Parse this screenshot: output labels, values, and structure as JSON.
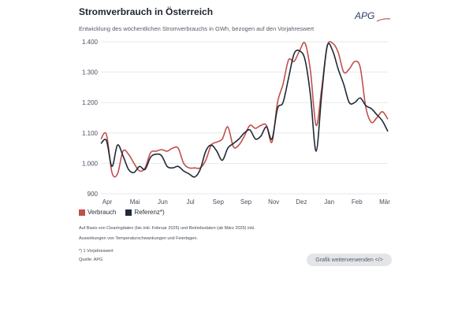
{
  "header": {
    "title": "Stromverbrauch in Österreich",
    "subtitle": "Entwicklung des wöchentlichen Stromverbrauchs in GWh, bezogen auf den Vorjahreswert",
    "logo_text": "APG"
  },
  "legend": {
    "verbrauch": "Verbrauch",
    "referenz": "Referenz*)"
  },
  "footer": {
    "note1": "Auf Basis von Clearingdaten (bis inkl. Februar 2025) und Betriebsdaten (ab März 2025) inkl.",
    "note2": "Auswirkungen von Temperaturschwankungen und Feiertagen.",
    "note3": "*) 1 Vorjahreswert",
    "source": "Quelle: APG",
    "button_label": "Grafik weiterverwenden </>"
  },
  "colors": {
    "verbrauch": "#c0504d",
    "referenz": "#1f2a38",
    "grid": "#e2e3e6"
  },
  "chart_data": {
    "type": "line",
    "title": "Stromverbrauch in Österreich",
    "ylim": [
      900,
      1400
    ],
    "yticks": [
      900,
      1000,
      1100,
      1200,
      1300,
      1400
    ],
    "ytick_labels": [
      "900",
      "1.000",
      "1.100",
      "1.200",
      "1.300",
      "1.400"
    ],
    "xticks": [
      "Apr",
      "Mai",
      "Jun",
      "Jul",
      "Sep",
      "Sep",
      "Nov",
      "Dez",
      "Jan",
      "Feb",
      "Mär"
    ],
    "x_count": 53,
    "grid": true,
    "legend_position": "bottom-left",
    "series": [
      {
        "name": "Verbrauch",
        "color": "#c0504d",
        "values": [
          1080,
          1095,
          970,
          965,
          1040,
          1030,
          1000,
          975,
          985,
          1035,
          1040,
          1045,
          1040,
          1050,
          1050,
          1000,
          985,
          985,
          985,
          1010,
          1060,
          1070,
          1080,
          1120,
          1055,
          1060,
          1090,
          1125,
          1115,
          1125,
          1125,
          1070,
          1200,
          1260,
          1340,
          1335,
          1370,
          1395,
          1300,
          1125,
          1245,
          1385,
          1395,
          1365,
          1300,
          1310,
          1335,
          1315,
          1185,
          1135,
          1150,
          1170,
          1145
        ]
      },
      {
        "name": "Referenz*)",
        "color": "#1f2a38",
        "values": [
          1065,
          1075,
          990,
          1060,
          1025,
          980,
          970,
          990,
          980,
          1020,
          1030,
          1025,
          990,
          985,
          990,
          975,
          965,
          955,
          980,
          1040,
          1060,
          1040,
          1010,
          1050,
          1065,
          1080,
          1100,
          1110,
          1080,
          1090,
          1120,
          1080,
          1180,
          1200,
          1280,
          1360,
          1370,
          1340,
          1220,
          1040,
          1225,
          1385,
          1370,
          1310,
          1260,
          1200,
          1200,
          1215,
          1190,
          1180,
          1160,
          1140,
          1105
        ]
      }
    ]
  }
}
